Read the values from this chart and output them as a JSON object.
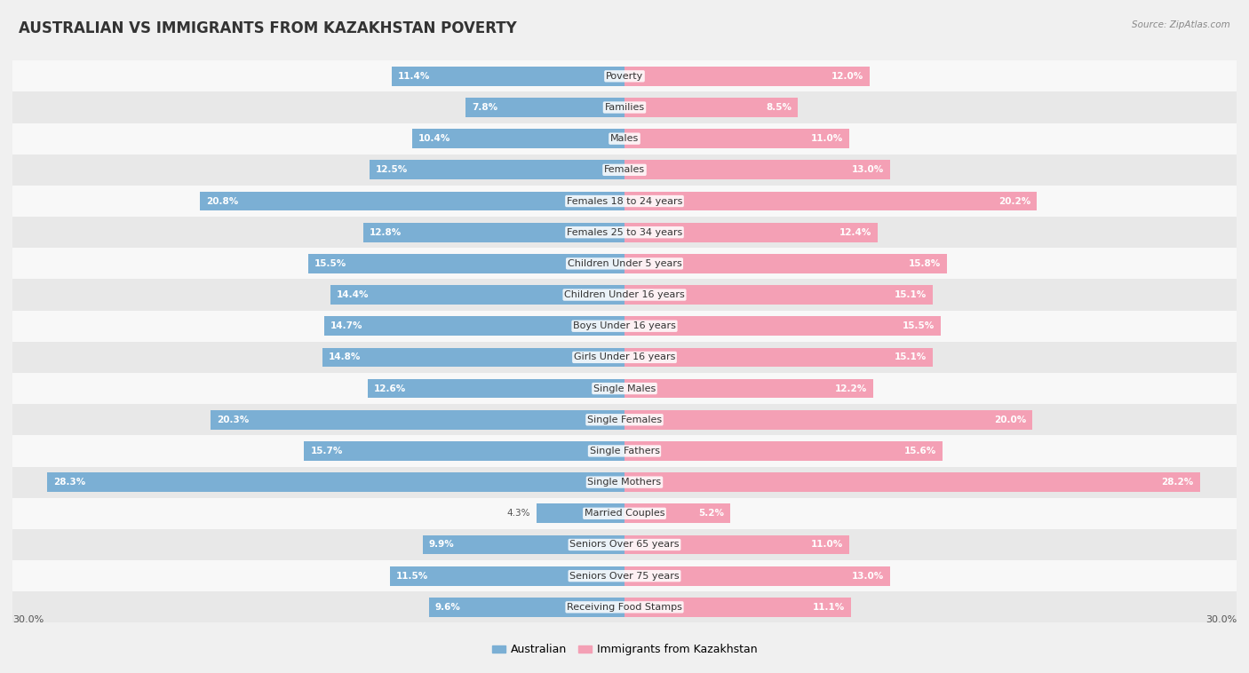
{
  "title": "AUSTRALIAN VS IMMIGRANTS FROM KAZAKHSTAN POVERTY",
  "source": "Source: ZipAtlas.com",
  "categories": [
    "Poverty",
    "Families",
    "Males",
    "Females",
    "Females 18 to 24 years",
    "Females 25 to 34 years",
    "Children Under 5 years",
    "Children Under 16 years",
    "Boys Under 16 years",
    "Girls Under 16 years",
    "Single Males",
    "Single Females",
    "Single Fathers",
    "Single Mothers",
    "Married Couples",
    "Seniors Over 65 years",
    "Seniors Over 75 years",
    "Receiving Food Stamps"
  ],
  "australian_values": [
    11.4,
    7.8,
    10.4,
    12.5,
    20.8,
    12.8,
    15.5,
    14.4,
    14.7,
    14.8,
    12.6,
    20.3,
    15.7,
    28.3,
    4.3,
    9.9,
    11.5,
    9.6
  ],
  "kazakhstan_values": [
    12.0,
    8.5,
    11.0,
    13.0,
    20.2,
    12.4,
    15.8,
    15.1,
    15.5,
    15.1,
    12.2,
    20.0,
    15.6,
    28.2,
    5.2,
    11.0,
    13.0,
    11.1
  ],
  "australian_color": "#7bafd4",
  "kazakhstan_color": "#f4a0b5",
  "background_color": "#f0f0f0",
  "row_colors": [
    "#f8f8f8",
    "#e8e8e8"
  ],
  "max_value": 30.0,
  "title_fontsize": 12,
  "cat_fontsize": 8,
  "value_fontsize": 7.5,
  "legend_labels": [
    "Australian",
    "Immigrants from Kazakhstan"
  ],
  "bottom_label": "30.0%"
}
